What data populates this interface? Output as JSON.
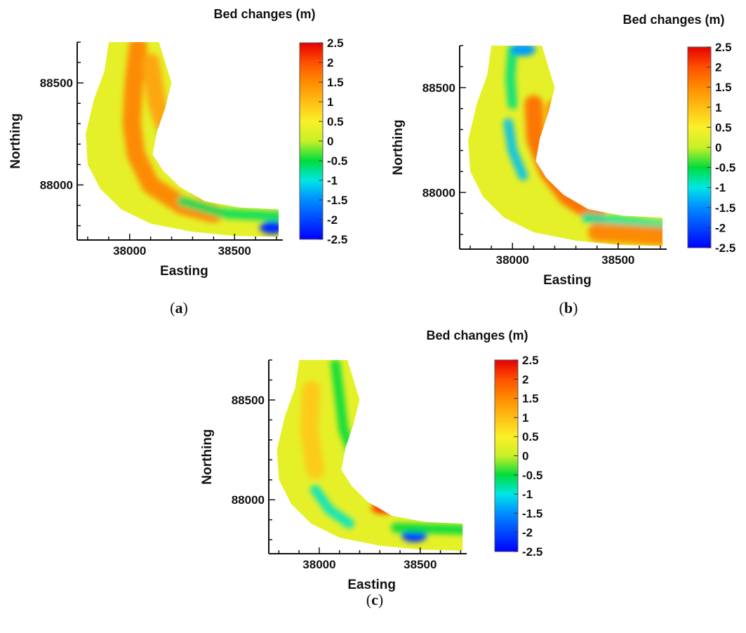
{
  "chart_data": [
    {
      "type": "heatmap",
      "caption_letter": "a",
      "title": "Bed changes (m)",
      "xlabel": "Easting",
      "ylabel": "Northing",
      "xticks": [
        38000,
        38500
      ],
      "yticks": [
        88000,
        88500
      ],
      "xlim": [
        37750,
        38730
      ],
      "ylim": [
        87730,
        88700
      ],
      "colorbar": {
        "ticks": [
          "2.5",
          "2",
          "1.5",
          "1",
          "0.5",
          "0",
          "-0.5",
          "-1",
          "-1.5",
          "-2",
          "-2.5"
        ],
        "range": [
          -2.5,
          2.5
        ]
      },
      "features": [
        {
          "kind": "ridge",
          "path": [
            [
              38040,
              88680
            ],
            [
              38020,
              88500
            ],
            [
              38010,
              88300
            ],
            [
              38030,
              88150
            ],
            [
              38100,
              88000
            ],
            [
              38250,
              87900
            ],
            [
              38400,
              87860
            ]
          ],
          "value": 1.6
        },
        {
          "kind": "ridge",
          "path": [
            [
              38100,
              88600
            ],
            [
              38130,
              88400
            ],
            [
              38180,
              88250
            ],
            [
              38260,
              88100
            ],
            [
              38350,
              87980
            ]
          ],
          "value": 1.3
        },
        {
          "kind": "band",
          "path": [
            [
              38250,
              87920
            ],
            [
              38450,
              87860
            ],
            [
              38720,
              87845
            ]
          ],
          "value": -0.6
        },
        {
          "kind": "spot",
          "x": 38680,
          "y": 87790,
          "value": -2.2
        },
        {
          "kind": "spot",
          "x": 38190,
          "y": 88250,
          "value": -0.3
        }
      ]
    },
    {
      "type": "heatmap",
      "caption_letter": "b",
      "title": "Bed changes (m)",
      "xlabel": "Easting",
      "ylabel": "Northing",
      "xticks": [
        38000,
        38500
      ],
      "yticks": [
        88000,
        88500
      ],
      "xlim": [
        37750,
        38730
      ],
      "ylim": [
        87730,
        88700
      ],
      "colorbar": {
        "ticks": [
          "2.5",
          "2",
          "1.5",
          "1",
          "0.5",
          "0",
          "-0.5",
          "-1",
          "-1.5",
          "-2",
          "-2.5"
        ],
        "range": [
          -2.5,
          2.5
        ]
      },
      "features": [
        {
          "kind": "band",
          "path": [
            [
              38000,
              88680
            ],
            [
              37990,
              88550
            ],
            [
              38000,
              88420
            ]
          ],
          "value": -0.7
        },
        {
          "kind": "spot",
          "x": 38050,
          "y": 88680,
          "value": -1.4
        },
        {
          "kind": "ridge",
          "path": [
            [
              38100,
              88420
            ],
            [
              38110,
              88250
            ],
            [
              38170,
              88100
            ],
            [
              38260,
              87980
            ],
            [
              38400,
              87890
            ]
          ],
          "value": 1.8
        },
        {
          "kind": "ridge",
          "path": [
            [
              38200,
              88400
            ],
            [
              38220,
              88250
            ],
            [
              38290,
              88120
            ],
            [
              38380,
              88000
            ]
          ],
          "value": 1.5
        },
        {
          "kind": "band",
          "path": [
            [
              37980,
              88330
            ],
            [
              38000,
              88200
            ],
            [
              38050,
              88080
            ]
          ],
          "value": -1.2
        },
        {
          "kind": "band",
          "path": [
            [
              38350,
              87880
            ],
            [
              38720,
              87840
            ]
          ],
          "value": -0.8
        },
        {
          "kind": "ridge",
          "path": [
            [
              38400,
              87810
            ],
            [
              38720,
              87790
            ]
          ],
          "value": 1.6
        }
      ]
    },
    {
      "type": "heatmap",
      "caption_letter": "c",
      "title": "Bed changes (m)",
      "xlabel": "Easting",
      "ylabel": "Northing",
      "xticks": [
        38000,
        38500
      ],
      "yticks": [
        88000,
        88500
      ],
      "xlim": [
        37750,
        38730
      ],
      "ylim": [
        87730,
        88700
      ],
      "colorbar": {
        "ticks": [
          "2.5",
          "2",
          "1.5",
          "1",
          "0.5",
          "0",
          "-0.5",
          "-1",
          "-1.5",
          "-2",
          "-2.5"
        ],
        "range": [
          -2.5,
          2.5
        ]
      },
      "features": [
        {
          "kind": "band",
          "path": [
            [
              38080,
              88680
            ],
            [
              38100,
              88520
            ],
            [
              38120,
              88350
            ],
            [
              38200,
              88150
            ],
            [
              38300,
              88000
            ]
          ],
          "value": -0.5
        },
        {
          "kind": "ridge",
          "path": [
            [
              37960,
              88550
            ],
            [
              37950,
              88350
            ],
            [
              37980,
              88150
            ]
          ],
          "value": 0.9
        },
        {
          "kind": "band",
          "path": [
            [
              37980,
              88050
            ],
            [
              38050,
              87950
            ],
            [
              38150,
              87880
            ]
          ],
          "value": -0.9
        },
        {
          "kind": "spot",
          "x": 38320,
          "y": 87960,
          "value": 2.1
        },
        {
          "kind": "spot",
          "x": 38470,
          "y": 87820,
          "value": -2.1
        },
        {
          "kind": "band",
          "path": [
            [
              38380,
              87860
            ],
            [
              38720,
              87850
            ]
          ],
          "value": -0.5
        }
      ]
    }
  ]
}
